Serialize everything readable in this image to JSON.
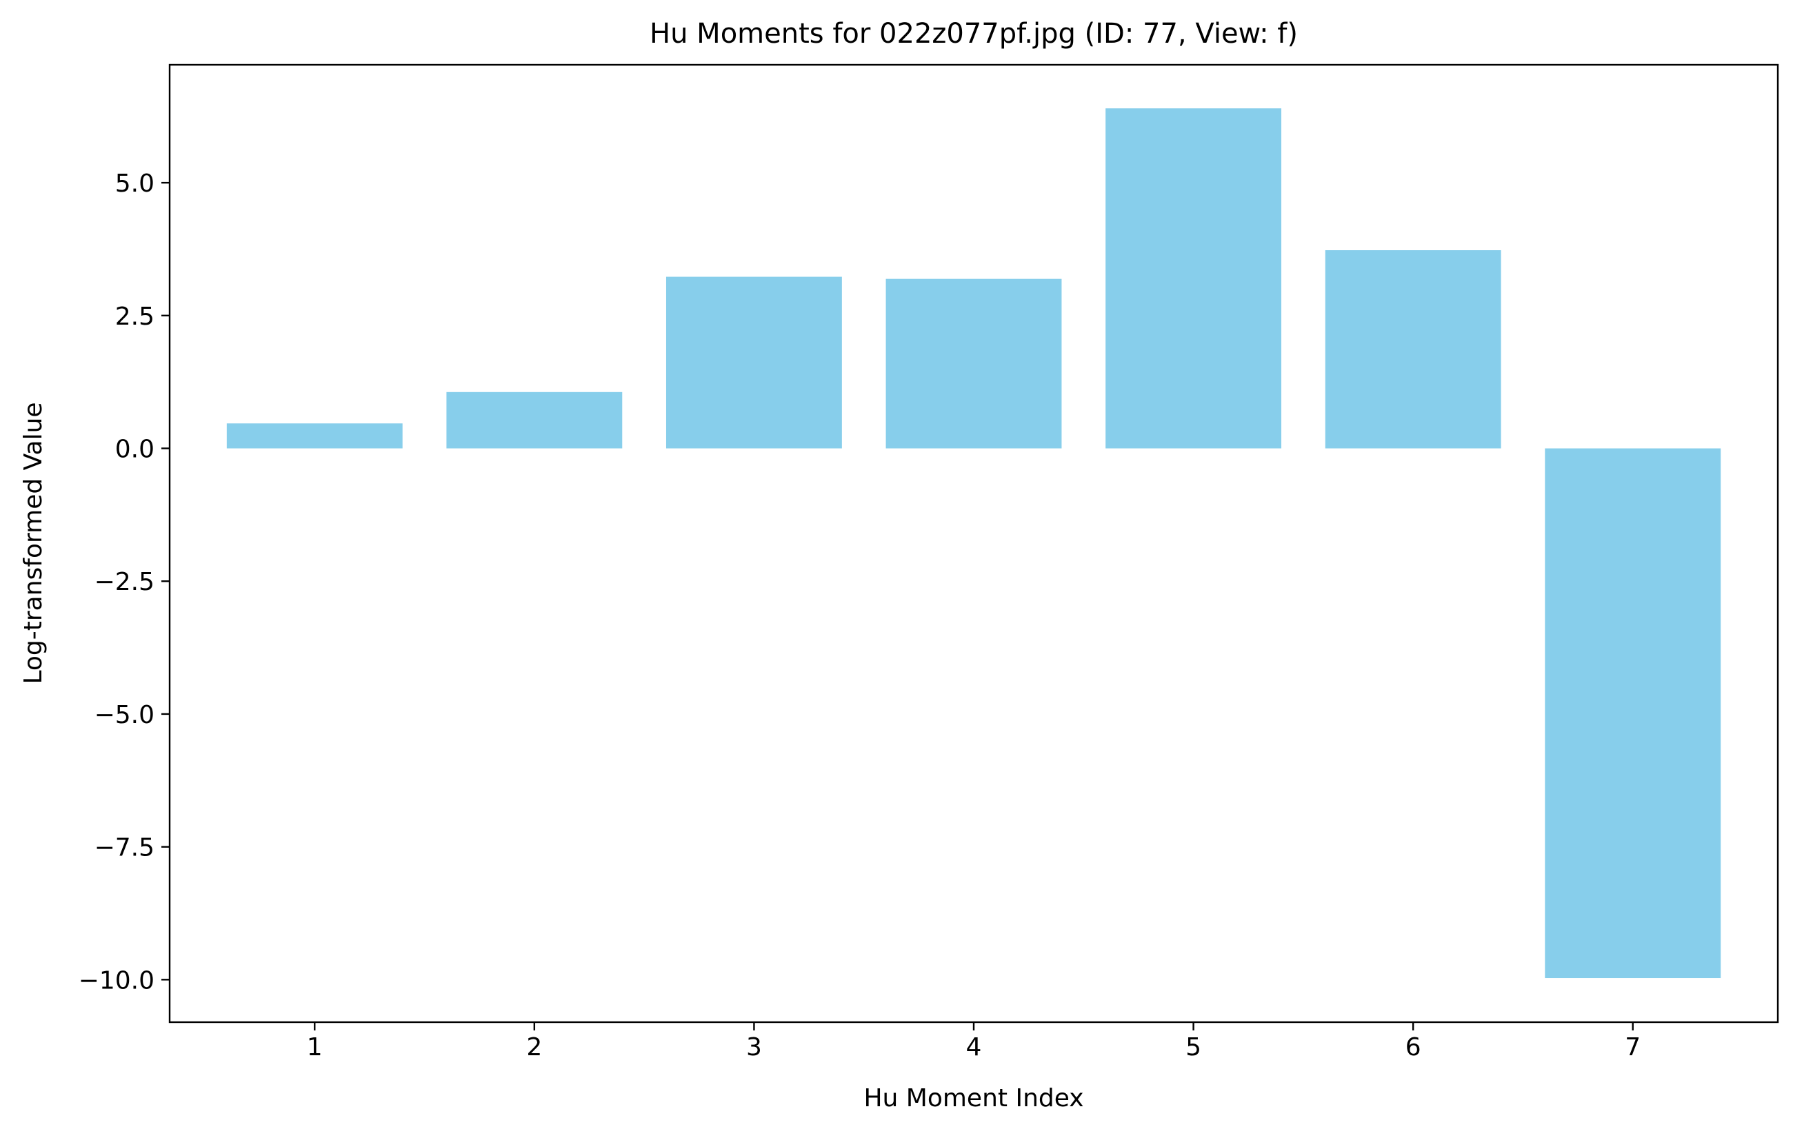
{
  "chart_data": {
    "type": "bar",
    "title": "Hu Moments for 022z077pf.jpg (ID: 77, View: f)",
    "xlabel": "Hu Moment Index",
    "ylabel": "Log-transformed Value",
    "categories": [
      "1",
      "2",
      "3",
      "4",
      "5",
      "6",
      "7"
    ],
    "values": [
      0.47,
      1.06,
      3.23,
      3.19,
      6.4,
      3.73,
      -9.97
    ],
    "xlim": [
      0.34,
      7.66
    ],
    "ylim": [
      -10.8,
      7.22
    ],
    "yticks": [
      -10.0,
      -7.5,
      -5.0,
      -2.5,
      0.0,
      2.5,
      5.0
    ],
    "ytick_labels": [
      "−10.0",
      "−7.5",
      "−5.0",
      "−2.5",
      "0.0",
      "2.5",
      "5.0"
    ],
    "bar_color": "#87CEEB",
    "grid": false,
    "legend": "none"
  }
}
